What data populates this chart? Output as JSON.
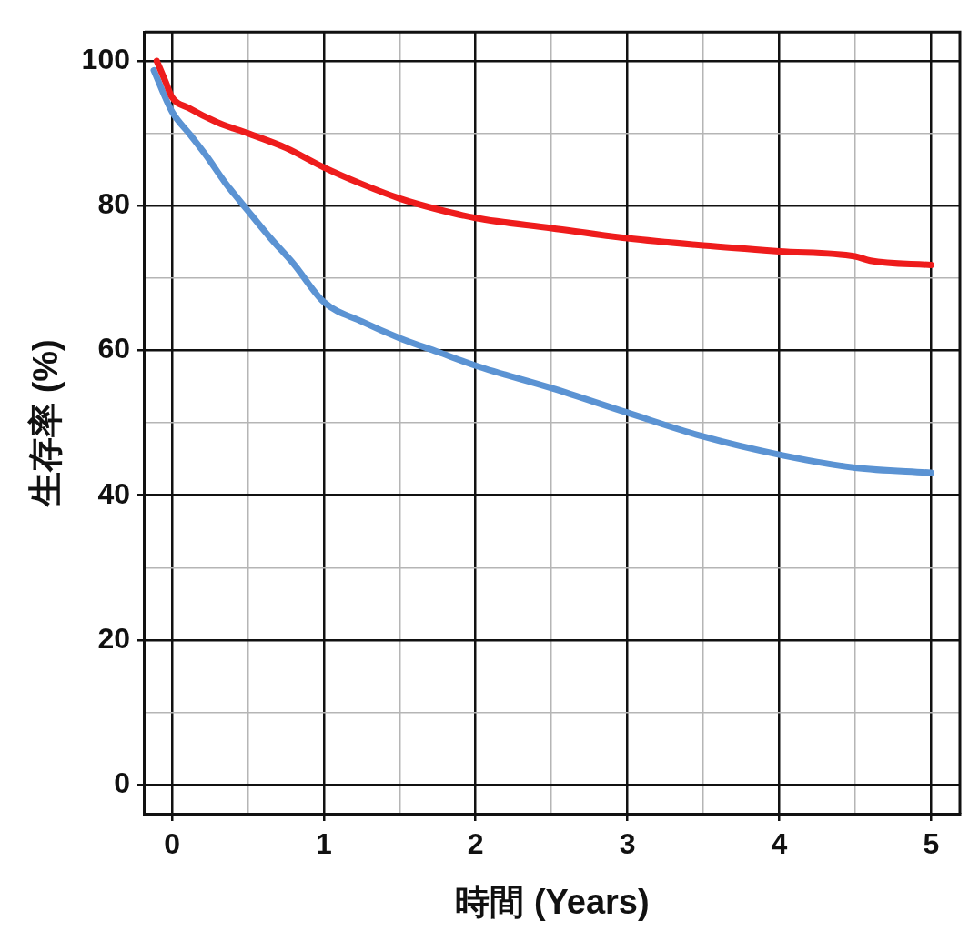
{
  "chart_data": {
    "type": "line",
    "xlabel": "時間 (Years)",
    "ylabel": "生存率 (%)",
    "xlim": [
      -0.18,
      5.19
    ],
    "ylim": [
      -4,
      104
    ],
    "xticks": [
      0,
      {
        "value": 0.5,
        "label": null
      },
      1,
      {
        "value": 1.5,
        "label": null
      },
      2,
      {
        "value": 2.5,
        "label": null
      },
      3,
      {
        "value": 3.5,
        "label": null
      },
      4,
      {
        "value": 4.5,
        "label": null
      },
      5
    ],
    "yticks": [
      0,
      {
        "value": 10,
        "label": null
      },
      20,
      {
        "value": 30,
        "label": null
      },
      40,
      {
        "value": 50,
        "label": null
      },
      60,
      {
        "value": 70,
        "label": null
      },
      80,
      {
        "value": 90,
        "label": null
      },
      100
    ],
    "grid": true,
    "legend": false,
    "marker": "none",
    "line_style": "solid",
    "series": [
      {
        "color": "#ee1c1c",
        "x": [
          -0.1,
          -0.04,
          0,
          0.11,
          0.3,
          0.5,
          0.75,
          1,
          1.25,
          1.5,
          1.75,
          2,
          2.5,
          3,
          3.5,
          4,
          4.5,
          4.6,
          5
        ],
        "values": [
          100,
          97,
          95,
          93.5,
          91.5,
          90,
          88,
          85.3,
          83,
          81,
          79.5,
          78.3,
          76.9,
          75.5,
          74.5,
          73.7,
          73,
          72.4,
          71.8
        ]
      },
      {
        "color": "#5b93d3",
        "x": [
          -0.12,
          0,
          0.12,
          0.23,
          0.35,
          0.5,
          0.65,
          0.8,
          1,
          1.25,
          1.5,
          1.75,
          2,
          2.5,
          3,
          3.5,
          4,
          4.5,
          5
        ],
        "values": [
          98.7,
          93,
          89.8,
          86.8,
          83.2,
          79.3,
          75.5,
          72,
          66.7,
          64,
          61.7,
          59.8,
          57.9,
          54.8,
          51.4,
          48.1,
          45.6,
          43.8,
          43.1
        ]
      }
    ]
  }
}
